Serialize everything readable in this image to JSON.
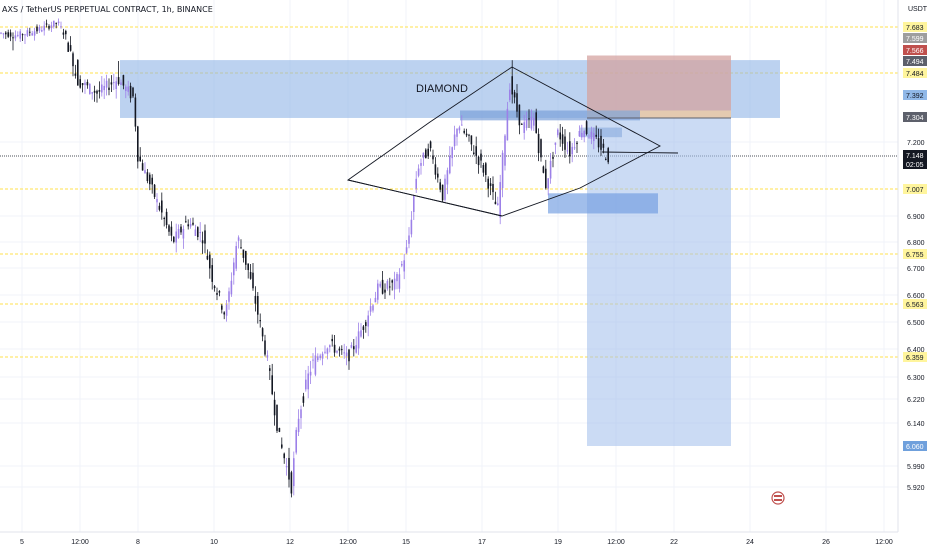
{
  "header": {
    "symbol_line": "AXS / TetherUS PERPETUAL CONTRACT, 1h, BINANCE"
  },
  "price_scale": {
    "currency": "USDT",
    "ticks": [
      "7.200",
      "6.900",
      "6.800",
      "6.700",
      "6.600",
      "6.500",
      "6.400",
      "6.300",
      "6.220",
      "6.140",
      "5.990",
      "5.920"
    ],
    "badges": [
      {
        "text": "7.683",
        "value": 7.683,
        "bg": "#fff59d",
        "fg": "#131722"
      },
      {
        "text": "7.599",
        "value": 7.599,
        "bg": "#9e9e9e",
        "fg": "#ffffff"
      },
      {
        "text": "7.566",
        "value": 7.566,
        "bg": "#c0504d",
        "fg": "#ffffff"
      },
      {
        "text": "7.494",
        "value": 7.494,
        "bg": "#5d606b",
        "fg": "#ffffff"
      },
      {
        "text": "7.484",
        "value": 7.484,
        "bg": "#fff59d",
        "fg": "#131722"
      },
      {
        "text": "7.392",
        "value": 7.392,
        "bg": "#90b8e8",
        "fg": "#131722"
      },
      {
        "text": "7.304",
        "value": 7.304,
        "bg": "#5d606b",
        "fg": "#ffffff"
      },
      {
        "text": "7.007",
        "value": 7.007,
        "bg": "#fff59d",
        "fg": "#131722"
      },
      {
        "text": "6.755",
        "value": 6.755,
        "bg": "#fff59d",
        "fg": "#131722"
      },
      {
        "text": "6.563",
        "value": 6.563,
        "bg": "#fff59d",
        "fg": "#131722"
      },
      {
        "text": "6.359",
        "value": 6.359,
        "bg": "#fff59d",
        "fg": "#131722"
      },
      {
        "text": "6.060",
        "value": 6.06,
        "bg": "#6fa0dc",
        "fg": "#ffffff"
      }
    ],
    "current_price": {
      "text": "7.148",
      "countdown": "02:05",
      "value": 7.148
    }
  },
  "time_scale": {
    "labels": [
      "5",
      "12:00",
      "8",
      "10",
      "12",
      "12:00",
      "15",
      "17",
      "19",
      "12:00",
      "22",
      "24",
      "26",
      "12:00"
    ]
  },
  "annotations": {
    "pattern_label": "DIAMOND"
  },
  "colors": {
    "up_candle": "#9c80e8",
    "down_candle": "#131722",
    "zone_blue": "#90b4e6",
    "zone_red": "#d4a3a0",
    "level_yellow": "#ffe24d",
    "target_blue": "#a9c3ec"
  },
  "icons": {
    "corner_logo": "tradingview-flag-icon"
  }
}
